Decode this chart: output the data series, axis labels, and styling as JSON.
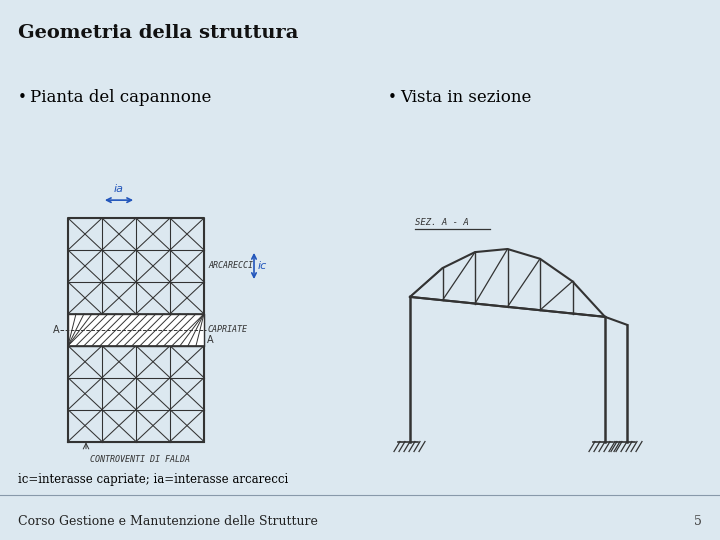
{
  "title": "Geometria della struttura",
  "slide_bg": "#dce8f0",
  "white_bg": "#ffffff",
  "bullet1": "Pianta del capannone",
  "bullet2": "Vista in sezione",
  "footer": "Corso Gestione e Manutenzione delle Strutture",
  "page_num": "5",
  "note": "ic=interasse capriate; ia=interasse arcarecci",
  "arrow_color": "#2255bb",
  "sketch_color": "#333333",
  "title_fontsize": 14,
  "bullet_fontsize": 12,
  "footer_fontsize": 9,
  "note_fontsize": 8.5
}
